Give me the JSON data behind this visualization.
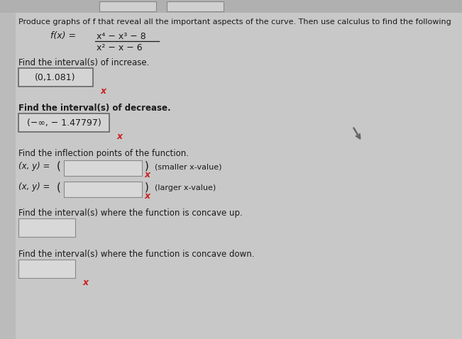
{
  "background_color": "#c8c8c8",
  "title_line": "Produce graphs of f that reveal all the important aspects of the curve. Then use calculus to find the following",
  "func_label": "f(x) =",
  "func_numerator": "x⁴ − x³ − 8",
  "func_denominator": "x² − x − 6",
  "section1_label": "Find the interval(s) of increase.",
  "section1_answer": "(0,1.081)",
  "section2_label": "Find the interval(s) of decrease.",
  "section2_answer": "(−∞, − 1.47797)",
  "section3_label": "Find the inflection points of the function.",
  "inflection1_label": "(x, y) = ",
  "inflection1_note": "(smaller x-value)",
  "inflection2_label": "(x, y) = ",
  "inflection2_note": "(larger x-value)",
  "section4_label": "Find the interval(s) where the function is concave up.",
  "section5_label": "Find the interval(s) where the function is concave down.",
  "answer_box_face": "#d4d4d4",
  "answer_box_border": "#666666",
  "empty_box_face": "#d8d8d8",
  "empty_box_border": "#888888",
  "text_color": "#1a1a1a",
  "red_x_color": "#cc2020",
  "top_strip_color": "#b0b0b0",
  "top_boxes_color": "#d0d0d0"
}
